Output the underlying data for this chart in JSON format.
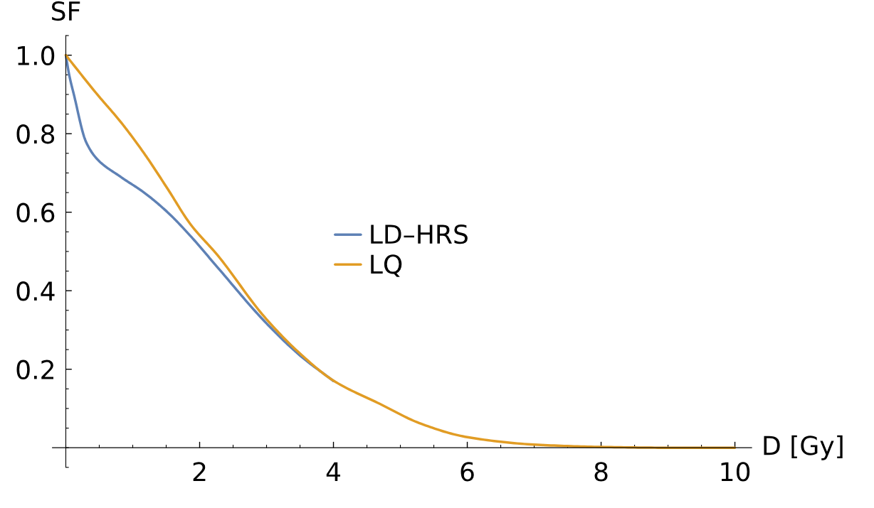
{
  "chart_data": {
    "type": "line",
    "xlabel": "D [Gy]",
    "ylabel": "SF",
    "series": [
      {
        "name": "LD–HRS",
        "color": "#5e81b5",
        "x": [
          0,
          0.05,
          0.12,
          0.3,
          0.47,
          0.82,
          1.17,
          1.52,
          1.86,
          2.27,
          2.97,
          3.5,
          4
        ],
        "values": [
          1,
          0.95,
          0.9,
          0.78,
          0.735,
          0.69,
          0.65,
          0.6,
          0.54,
          0.459,
          0.322,
          0.235,
          0.17
        ]
      },
      {
        "name": "LQ",
        "color": "#e19c24",
        "x": [
          0,
          0.47,
          0.82,
          1.17,
          1.52,
          1.86,
          2.27,
          2.97,
          3.5,
          4,
          4.69,
          5.31,
          6,
          7,
          8,
          9,
          10
        ],
        "values": [
          1,
          0.9,
          0.83,
          0.75,
          0.66,
          0.57,
          0.49,
          0.333,
          0.24,
          0.171,
          0.112,
          0.061,
          0.027,
          0.008,
          0.002,
          0,
          0
        ]
      }
    ],
    "xlim": [
      -0.2,
      10.25
    ],
    "ylim": [
      -0.05,
      1.05
    ],
    "xticks": [
      2,
      4,
      6,
      8,
      10
    ],
    "yticks": [
      {
        "value": 0.2,
        "label": "0.2"
      },
      {
        "value": 0.4,
        "label": "0.4"
      },
      {
        "value": 0.6,
        "label": "0.6"
      },
      {
        "value": 0.8,
        "label": "0.8"
      },
      {
        "value": 1.0,
        "label": "1.0"
      }
    ],
    "legend": "center",
    "grid": false,
    "marker": "none",
    "line_style": "solid"
  }
}
